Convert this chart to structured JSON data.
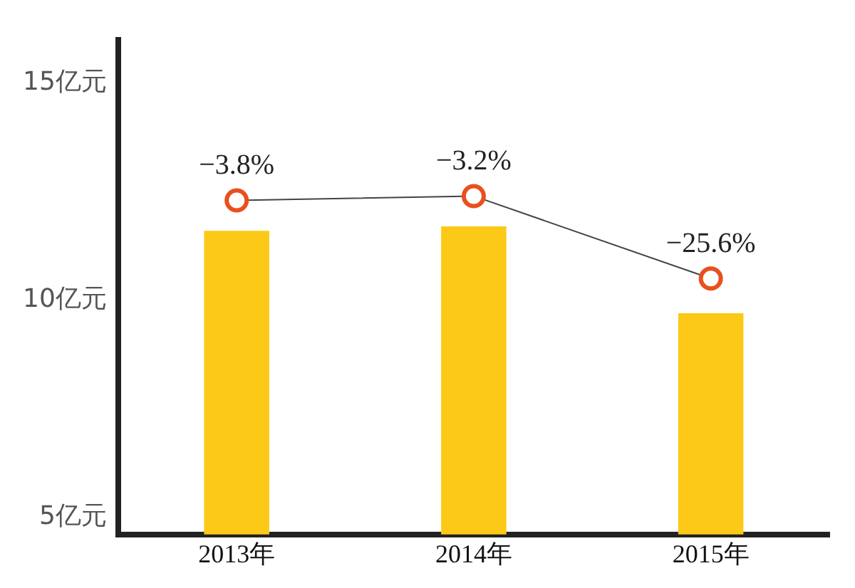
{
  "chart_data": {
    "type": "bar",
    "categories": [
      "2013年",
      "2014年",
      "2015年"
    ],
    "series": [
      {
        "color": "#fcc916",
        "values": [
          11.6,
          11.7,
          9.7
        ]
      },
      {
        "type": "line",
        "color": "#e8501e",
        "values": [
          12.3,
          12.4,
          10.5
        ],
        "marker": "circle"
      }
    ],
    "annotations": [
      {
        "text": "−3.8%",
        "x": "2013年",
        "y": 12.3
      },
      {
        "text": "−3.2%",
        "x": "2014年",
        "y": 12.4
      },
      {
        "text": "−25.6%",
        "x": "2015年",
        "y": 10.5
      }
    ],
    "ylim": [
      4.6,
      16
    ],
    "yticks": [
      {
        "value": 5,
        "label": "5亿元"
      },
      {
        "value": 10,
        "label": "10亿元"
      },
      {
        "value": 15,
        "label": "15亿元"
      }
    ],
    "grid": false,
    "legend": false
  }
}
